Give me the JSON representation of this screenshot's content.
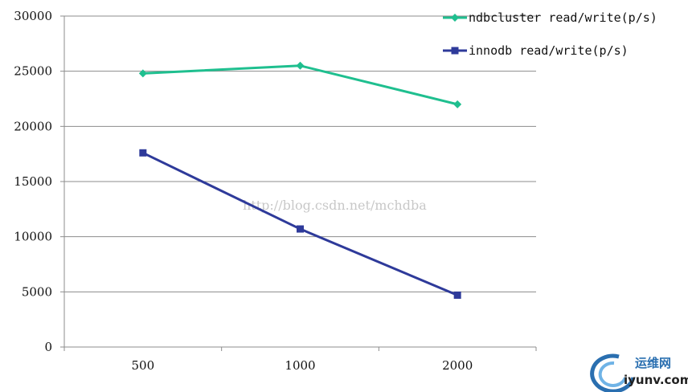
{
  "chart_data": {
    "type": "line",
    "title": "",
    "xlabel": "",
    "ylabel": "",
    "categories": [
      "500",
      "1000",
      "2000"
    ],
    "y_ticks": [
      "0",
      "5000",
      "10000",
      "15000",
      "20000",
      "25000",
      "30000"
    ],
    "ylim": [
      0,
      30000
    ],
    "grid": "horizontal",
    "legend_position": "top-right",
    "series": [
      {
        "name": "ndbcluster read/write(p/s)",
        "values": [
          24800,
          25500,
          22000
        ],
        "color": "#1fbf8f",
        "marker": "diamond"
      },
      {
        "name": "innodb read/write(p/s)",
        "values": [
          17600,
          10700,
          4700
        ],
        "color": "#2e3a9a",
        "marker": "square"
      }
    ]
  },
  "watermark": {
    "text": "http://blog.csdn.net/mchdba"
  },
  "site_logo": {
    "name": "运维网",
    "url": "iyunv.com",
    "icon": "swirl-logo-icon",
    "color": "#2a6fb0"
  }
}
